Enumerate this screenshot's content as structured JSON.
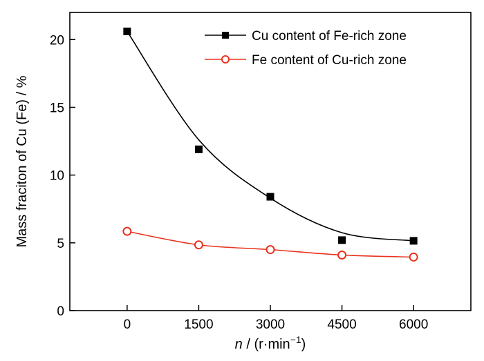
{
  "chart_data": {
    "type": "line",
    "x": [
      0,
      1500,
      3000,
      4500,
      6000
    ],
    "xticks": [
      "0",
      "1500",
      "3000",
      "4500",
      "6000"
    ],
    "yticks": [
      "0",
      "5",
      "10",
      "15",
      "20"
    ],
    "xlim": [
      -1200,
      7200
    ],
    "ylim": [
      0,
      22
    ],
    "xlabel_italic": "n",
    "xlabel_rest": " / (r·min",
    "xlabel_sup": "−1",
    "xlabel_close": ")",
    "ylabel": "Mass fraciton of Cu (Fe) / %",
    "grid": false,
    "legend_position": "top-right",
    "series": [
      {
        "name": "Cu content of Fe-rich zone",
        "values": [
          20.6,
          11.9,
          8.4,
          5.2,
          5.15
        ],
        "fit": [
          20.6,
          12.6,
          8.3,
          5.75,
          5.15
        ],
        "color": "#000000",
        "marker": "filled-square"
      },
      {
        "name": "Fe content of Cu-rich zone",
        "values": [
          5.85,
          4.85,
          4.5,
          4.1,
          3.95
        ],
        "fit": [
          5.85,
          4.85,
          4.5,
          4.1,
          3.95
        ],
        "color": "#e8321e",
        "marker": "open-circle"
      }
    ]
  }
}
